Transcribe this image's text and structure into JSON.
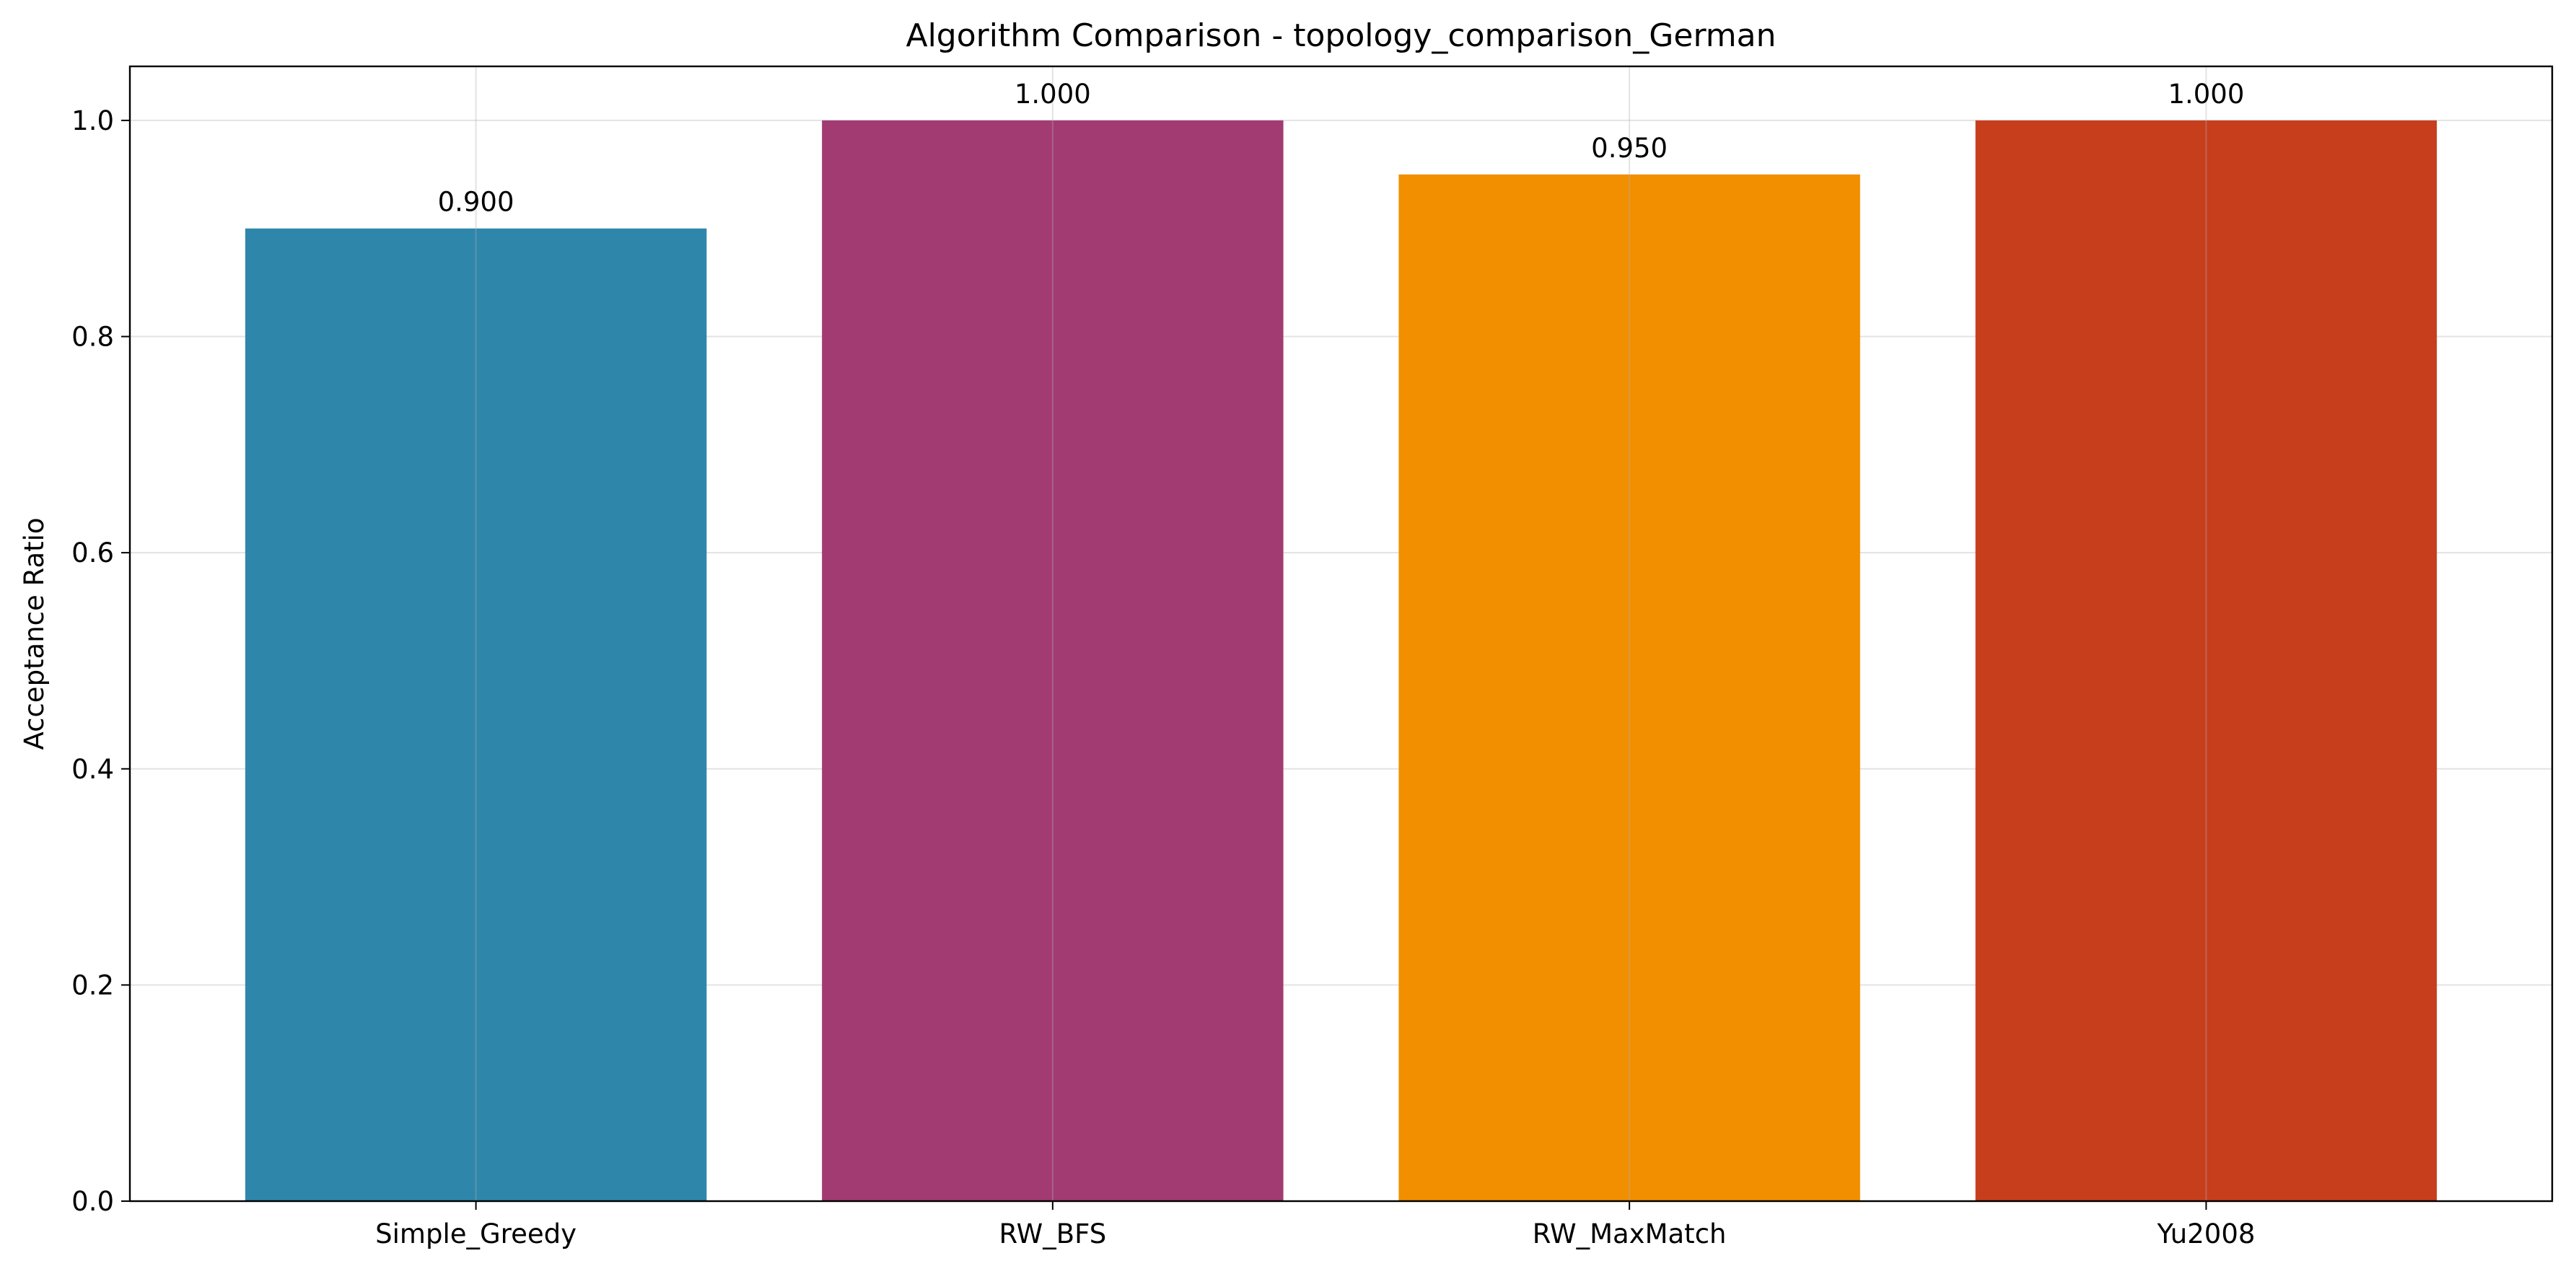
{
  "chart_data": {
    "type": "bar",
    "title": "Algorithm Comparison - topology_comparison_German",
    "xlabel": "",
    "ylabel": "Acceptance Ratio",
    "categories": [
      "Simple_Greedy",
      "RW_BFS",
      "RW_MaxMatch",
      "Yu2008"
    ],
    "values": [
      0.9,
      1.0,
      0.95,
      1.0
    ],
    "data_labels": [
      "0.900",
      "1.000",
      "0.950",
      "1.000"
    ],
    "colors": [
      "#2E86AB",
      "#A23B72",
      "#F18F01",
      "#C73E1D"
    ],
    "ylim": [
      0,
      1.05
    ],
    "yticks": [
      0.0,
      0.2,
      0.4,
      0.6,
      0.8,
      1.0
    ],
    "ytick_labels": [
      "0.0",
      "0.2",
      "0.4",
      "0.6",
      "0.8",
      "1.0"
    ],
    "grid": true,
    "legend": false
  }
}
